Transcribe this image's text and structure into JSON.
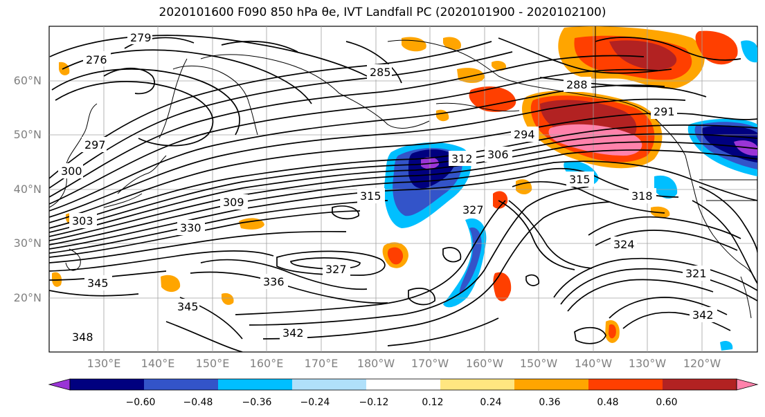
{
  "title": "2020101600 F090 850 hPa θe, IVT Landfall PC (2020101900 - 2020102100)",
  "latitude_labels": [
    "60°N",
    "50°N",
    "40°N",
    "30°N",
    "20°N"
  ],
  "longitude_labels": [
    "130°E",
    "140°E",
    "150°E",
    "160°E",
    "170°E",
    "180°W",
    "170°W",
    "160°W",
    "150°W",
    "140°W",
    "130°W",
    "120°W"
  ],
  "colorbar": {
    "tick_labels": [
      "−0.60",
      "−0.48",
      "−0.36",
      "−0.24",
      "−0.12",
      "0.12",
      "0.24",
      "0.36",
      "0.48",
      "0.60"
    ],
    "colors": [
      "#9a35d6",
      "#00007f",
      "#3354c9",
      "#00bfff",
      "#b0e0fa",
      "#ffffff",
      "#ffe680",
      "#ffa500",
      "#ff3f00",
      "#b22222",
      "#ff82ab"
    ]
  },
  "contour_labels": [
    "276",
    "279",
    "285",
    "288",
    "291",
    "294",
    "297",
    "300",
    "303",
    "306",
    "309",
    "312",
    "315",
    "318",
    "321",
    "324",
    "327",
    "330",
    "336",
    "342",
    "345",
    "348"
  ],
  "colors": {
    "contour": "#000000",
    "grid": "#a0a0a0",
    "coast": "#000000"
  }
}
